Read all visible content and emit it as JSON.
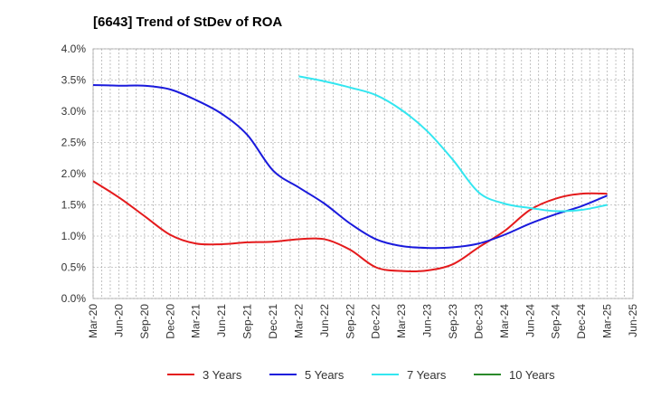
{
  "chart_data": {
    "type": "line",
    "title": "[6643]  Trend of StDev of ROA",
    "xlabel": "",
    "ylabel": "",
    "x": [
      "Mar-20",
      "Jun-20",
      "Sep-20",
      "Dec-20",
      "Mar-21",
      "Jun-21",
      "Sep-21",
      "Dec-21",
      "Mar-22",
      "Jun-22",
      "Sep-22",
      "Dec-22",
      "Mar-23",
      "Jun-23",
      "Sep-23",
      "Dec-23",
      "Mar-24",
      "Jun-24",
      "Sep-24",
      "Dec-24",
      "Mar-25",
      "Jun-25"
    ],
    "ylim": [
      0,
      4.0
    ],
    "yticks": [
      "0.0%",
      "0.5%",
      "1.0%",
      "1.5%",
      "2.0%",
      "2.5%",
      "3.0%",
      "3.5%",
      "4.0%"
    ],
    "grid": true,
    "legend_position": "bottom",
    "series": [
      {
        "name": "3 Years",
        "color": "#e41a1c",
        "values": [
          1.88,
          1.62,
          1.32,
          1.02,
          0.88,
          0.87,
          0.9,
          0.91,
          0.95,
          0.95,
          0.78,
          0.5,
          0.44,
          0.45,
          0.55,
          0.82,
          1.08,
          1.42,
          1.6,
          1.68,
          1.68,
          null
        ]
      },
      {
        "name": "5 Years",
        "color": "#1a1adc",
        "values": [
          3.42,
          3.41,
          3.41,
          3.35,
          3.18,
          2.96,
          2.62,
          2.05,
          1.78,
          1.52,
          1.2,
          0.95,
          0.84,
          0.81,
          0.82,
          0.88,
          1.02,
          1.2,
          1.35,
          1.48,
          1.65,
          null
        ]
      },
      {
        "name": "7 Years",
        "color": "#33e6f0",
        "values": [
          null,
          null,
          null,
          null,
          null,
          null,
          null,
          null,
          3.56,
          3.48,
          3.38,
          3.26,
          3.02,
          2.68,
          2.22,
          1.7,
          1.52,
          1.45,
          1.4,
          1.42,
          1.5,
          null
        ]
      },
      {
        "name": "10 Years",
        "color": "#2a8a2a",
        "values": [
          null,
          null,
          null,
          null,
          null,
          null,
          null,
          null,
          null,
          null,
          null,
          null,
          null,
          null,
          null,
          null,
          null,
          null,
          null,
          null,
          null,
          null
        ]
      }
    ]
  }
}
